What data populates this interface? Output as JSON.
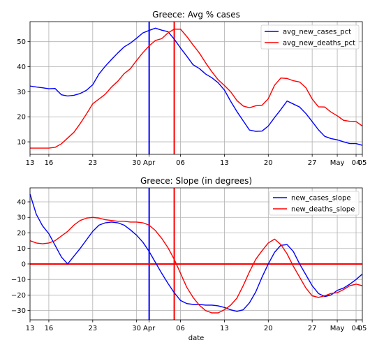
{
  "chart_data": [
    {
      "type": "line",
      "title": "Greece: Avg % cases",
      "xlabel": "",
      "ylabel": "",
      "x": [
        "Mar 13",
        "Mar 14",
        "Mar 15",
        "Mar 16",
        "Mar 17",
        "Mar 18",
        "Mar 19",
        "Mar 20",
        "Mar 21",
        "Mar 22",
        "Mar 23",
        "Mar 24",
        "Mar 25",
        "Mar 26",
        "Mar 27",
        "Mar 28",
        "Mar 29",
        "Mar 30",
        "Mar 31",
        "Apr 01",
        "Apr 02",
        "Apr 03",
        "Apr 04",
        "Apr 05",
        "Apr 06",
        "Apr 07",
        "Apr 08",
        "Apr 09",
        "Apr 10",
        "Apr 11",
        "Apr 12",
        "Apr 13",
        "Apr 14",
        "Apr 15",
        "Apr 16",
        "Apr 17",
        "Apr 18",
        "Apr 19",
        "Apr 20",
        "Apr 21",
        "Apr 22",
        "Apr 23",
        "Apr 24",
        "Apr 25",
        "Apr 26",
        "Apr 27",
        "Apr 28",
        "Apr 29",
        "Apr 30",
        "May 01",
        "May 02",
        "May 03",
        "May 04",
        "May 05"
      ],
      "x_ticks": [
        {
          "date": "Mar 13",
          "label": "13"
        },
        {
          "date": "Mar 16",
          "label": "16"
        },
        {
          "date": "Mar 23",
          "label": "23"
        },
        {
          "date": "Mar 30",
          "label": "30"
        },
        {
          "date": "Apr 01",
          "label": "Apr"
        },
        {
          "date": "Apr 06",
          "label": "06"
        },
        {
          "date": "Apr 13",
          "label": "13"
        },
        {
          "date": "Apr 20",
          "label": "20"
        },
        {
          "date": "Apr 27",
          "label": "27"
        },
        {
          "date": "May 01",
          "label": "May"
        },
        {
          "date": "May 04",
          "label": "04"
        },
        {
          "date": "May 05",
          "label": "05"
        }
      ],
      "y_ticks": [
        10,
        20,
        30,
        40,
        50
      ],
      "ylim": [
        5,
        58
      ],
      "grid": true,
      "legend_position": "top-right",
      "series": [
        {
          "name": "avg_new_cases_pct",
          "color": "#0000ff",
          "values": [
            32.3,
            31.9,
            31.6,
            31.2,
            31.3,
            28.8,
            28.3,
            28.6,
            29.3,
            30.6,
            32.8,
            37.1,
            40.2,
            42.9,
            45.5,
            47.9,
            49.4,
            51.4,
            53.5,
            54.5,
            55.4,
            54.6,
            54.0,
            51.0,
            47.5,
            44.2,
            40.8,
            39.3,
            37.1,
            35.6,
            33.6,
            30.7,
            26.2,
            22.1,
            18.4,
            14.7,
            14.2,
            14.3,
            16.3,
            19.7,
            22.9,
            26.3,
            25.1,
            23.9,
            21.3,
            18.1,
            14.8,
            12.2,
            11.3,
            10.8,
            10.0,
            9.3,
            9.3,
            8.6
          ]
        },
        {
          "name": "avg_new_deaths_pct",
          "color": "#ff0000",
          "values": [
            7.5,
            7.5,
            7.5,
            7.5,
            7.8,
            9.2,
            11.5,
            13.8,
            17.3,
            21.1,
            25.2,
            27.1,
            29.0,
            31.9,
            34.2,
            37.2,
            39.2,
            42.5,
            45.6,
            48.3,
            50.5,
            51.2,
            53.5,
            55.0,
            55.0,
            52.1,
            48.7,
            45.5,
            41.6,
            38.0,
            34.8,
            32.5,
            30.0,
            26.5,
            24.3,
            23.6,
            24.4,
            24.6,
            27.2,
            32.6,
            35.5,
            35.3,
            34.4,
            33.9,
            31.6,
            27.1,
            24.0,
            23.9,
            21.9,
            20.4,
            18.6,
            18.2,
            18.1,
            16.3
          ]
        }
      ],
      "vlines": [
        {
          "date": "Apr 01",
          "color": "#0000ff"
        },
        {
          "date": "Apr 05",
          "color": "#ff0000"
        }
      ]
    },
    {
      "type": "line",
      "title": "Greece: Slope (in degrees)",
      "xlabel": "date",
      "ylabel": "",
      "x": [
        "Mar 13",
        "Mar 14",
        "Mar 15",
        "Mar 16",
        "Mar 17",
        "Mar 18",
        "Mar 19",
        "Mar 20",
        "Mar 21",
        "Mar 22",
        "Mar 23",
        "Mar 24",
        "Mar 25",
        "Mar 26",
        "Mar 27",
        "Mar 28",
        "Mar 29",
        "Mar 30",
        "Mar 31",
        "Apr 01",
        "Apr 02",
        "Apr 03",
        "Apr 04",
        "Apr 05",
        "Apr 06",
        "Apr 07",
        "Apr 08",
        "Apr 09",
        "Apr 10",
        "Apr 11",
        "Apr 12",
        "Apr 13",
        "Apr 14",
        "Apr 15",
        "Apr 16",
        "Apr 17",
        "Apr 18",
        "Apr 19",
        "Apr 20",
        "Apr 21",
        "Apr 22",
        "Apr 23",
        "Apr 24",
        "Apr 25",
        "Apr 26",
        "Apr 27",
        "Apr 28",
        "Apr 29",
        "Apr 30",
        "May 01",
        "May 02",
        "May 03",
        "May 04",
        "May 05"
      ],
      "x_ticks": [
        {
          "date": "Mar 13",
          "label": "13"
        },
        {
          "date": "Mar 16",
          "label": "16"
        },
        {
          "date": "Mar 23",
          "label": "23"
        },
        {
          "date": "Mar 30",
          "label": "30"
        },
        {
          "date": "Apr 01",
          "label": "Apr"
        },
        {
          "date": "Apr 06",
          "label": "06"
        },
        {
          "date": "Apr 13",
          "label": "13"
        },
        {
          "date": "Apr 20",
          "label": "20"
        },
        {
          "date": "Apr 27",
          "label": "27"
        },
        {
          "date": "May 01",
          "label": "May"
        },
        {
          "date": "May 04",
          "label": "04"
        },
        {
          "date": "May 05",
          "label": "05"
        }
      ],
      "y_ticks": [
        -30,
        -20,
        -10,
        0,
        10,
        20,
        30,
        40
      ],
      "ylim": [
        -36,
        49
      ],
      "grid": true,
      "legend_position": "top-right",
      "series": [
        {
          "name": "new_cases_slope",
          "color": "#0000ff",
          "values": [
            45,
            32,
            24.5,
            19.5,
            12,
            4.5,
            0,
            5,
            10,
            15.5,
            21,
            25,
            26.5,
            27,
            26.5,
            25,
            22,
            18.5,
            14,
            8,
            1,
            -6,
            -12.5,
            -18.5,
            -23.5,
            -25.5,
            -26,
            -26,
            -26.5,
            -26.5,
            -27,
            -28,
            -29.5,
            -30.5,
            -29.5,
            -25,
            -18,
            -8.5,
            0,
            7.5,
            12,
            12.5,
            8,
            0,
            -7,
            -14,
            -19,
            -21,
            -20,
            -17,
            -15.5,
            -13,
            -10,
            -6.5
          ]
        },
        {
          "name": "new_deaths_slope",
          "color": "#ff0000",
          "values": [
            15,
            13.5,
            13,
            13.5,
            15,
            18,
            21,
            25,
            28,
            29.5,
            30,
            29.5,
            28.5,
            28,
            27.5,
            27.5,
            27,
            27,
            26.5,
            25,
            21.5,
            16.5,
            10.5,
            3,
            -6,
            -15,
            -21.5,
            -26.5,
            -30,
            -31.5,
            -31.5,
            -29.5,
            -26.5,
            -22,
            -14,
            -5,
            3,
            8.5,
            13.5,
            16,
            12.5,
            6.5,
            -1.5,
            -8.5,
            -15.5,
            -20.5,
            -21.5,
            -20.5,
            -19,
            -18.5,
            -16.5,
            -14,
            -13,
            -14
          ]
        }
      ],
      "vlines": [
        {
          "date": "Apr 01",
          "color": "#0000ff"
        },
        {
          "date": "Apr 05",
          "color": "#ff0000"
        }
      ],
      "hlines": [
        {
          "y": 0,
          "color": "#ff0000"
        }
      ]
    }
  ]
}
